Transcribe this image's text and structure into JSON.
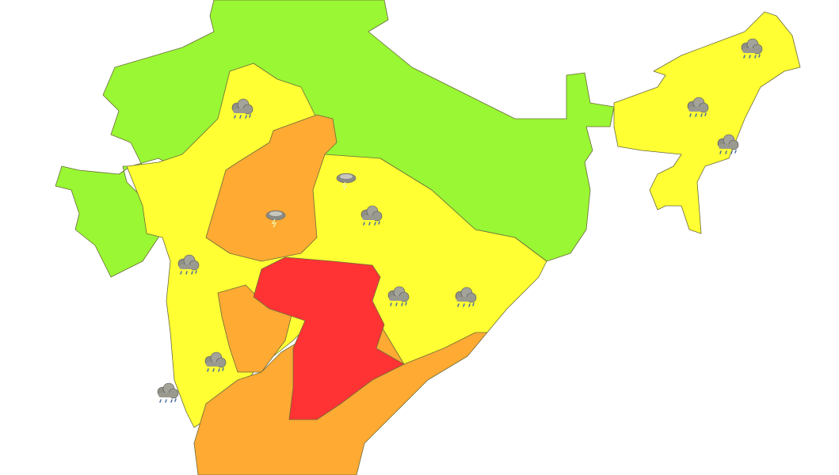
{
  "legend_colors": {
    "no_warning": "#99f733",
    "watch": "#ffff33",
    "alert": "#ffaa33",
    "warning": "#ff3333"
  },
  "regions": [
    {
      "id": "north-green",
      "level": "no_warning"
    },
    {
      "id": "central-yellow",
      "level": "watch"
    },
    {
      "id": "northeast-yellow",
      "level": "watch"
    },
    {
      "id": "west-orange",
      "level": "alert"
    },
    {
      "id": "deccan-orange",
      "level": "alert"
    },
    {
      "id": "south-orange",
      "level": "alert"
    },
    {
      "id": "central-red",
      "level": "warning"
    }
  ],
  "weather_icons": [
    {
      "icon": "rain-cloud-icon"
    },
    {
      "icon": "rain-cloud-icon"
    },
    {
      "icon": "rain-cloud-icon"
    },
    {
      "icon": "rain-cloud-icon"
    },
    {
      "icon": "rain-cloud-icon"
    },
    {
      "icon": "rain-cloud-icon"
    },
    {
      "icon": "rain-cloud-icon"
    },
    {
      "icon": "rain-cloud-icon"
    },
    {
      "icon": "rain-cloud-icon"
    },
    {
      "icon": "rain-cloud-icon"
    },
    {
      "icon": "thunderstorm-icon"
    },
    {
      "icon": "thunderstorm-icon"
    }
  ]
}
